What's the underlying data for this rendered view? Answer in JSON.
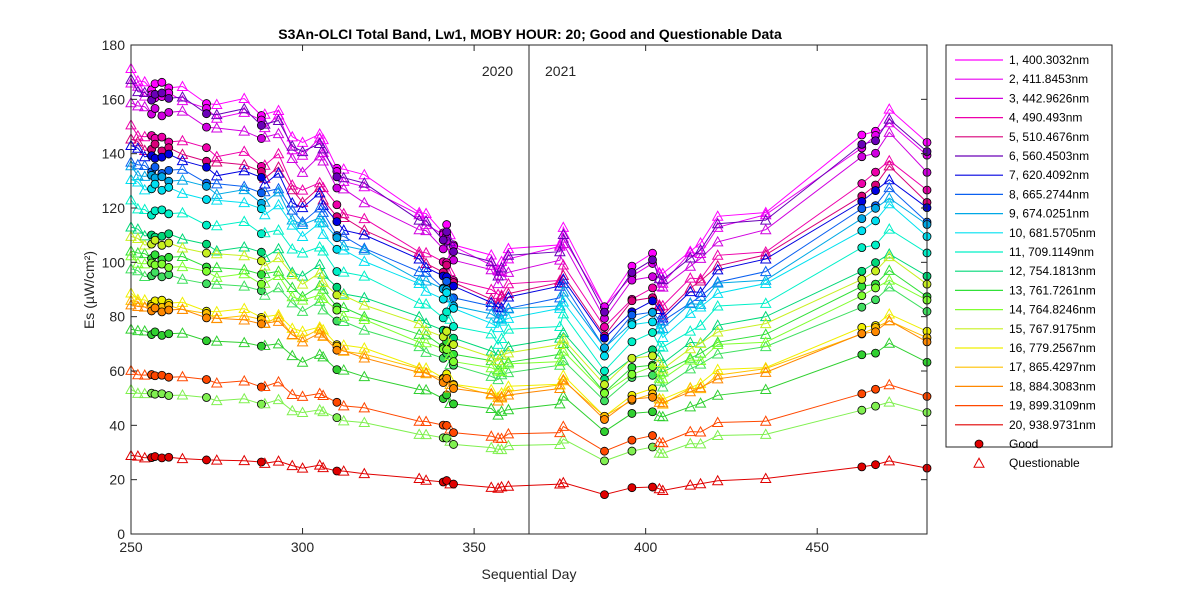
{
  "chart_data": {
    "type": "line",
    "title": "S3An-OLCI Total Band,  Lw1, MOBY HOUR: 20;  Good and Questionable Data",
    "xlabel": "Sequential Day",
    "ylabel": "Es (µW/cm²)",
    "xlim": [
      250,
      482
    ],
    "ylim": [
      0,
      180
    ],
    "xticks": [
      250,
      300,
      350,
      400,
      450
    ],
    "yticks": [
      0,
      20,
      40,
      60,
      80,
      100,
      120,
      140,
      160,
      180
    ],
    "grid": false,
    "legend_position": "outside-right",
    "year_divider": {
      "x": 366,
      "left_label": "2020",
      "right_label": "2021"
    },
    "x": [
      250,
      252,
      254,
      256,
      257,
      259,
      261,
      265,
      272,
      275,
      283,
      288,
      289,
      293,
      297,
      300,
      305,
      306,
      310,
      312,
      318,
      334,
      336,
      341,
      342,
      343,
      344,
      355,
      357,
      358,
      360,
      375,
      376,
      388,
      396,
      402,
      404,
      405,
      413,
      416,
      421,
      435,
      463,
      467,
      471,
      482
    ],
    "good_days": [
      256,
      257,
      259,
      261,
      272,
      288,
      310,
      341,
      342,
      344,
      388,
      396,
      402,
      463,
      467,
      482
    ],
    "series": [
      {
        "name": "1, 400.3032nm",
        "color": "#ff00ff",
        "base": 170
      },
      {
        "name": "2, 411.8453nm",
        "color": "#e800f0",
        "base": 166
      },
      {
        "name": "3, 442.9626nm",
        "color": "#d000e0",
        "base": 160
      },
      {
        "name": "4,  490.493nm",
        "color": "#ee00aa",
        "base": 150
      },
      {
        "name": "5, 510.4676nm",
        "color": "#d8007a",
        "base": 146
      },
      {
        "name": "6, 560.4503nm",
        "color": "#6a00b8",
        "base": 166
      },
      {
        "name": "7, 620.4092nm",
        "color": "#0000e0",
        "base": 143
      },
      {
        "name": "8, 665.2744nm",
        "color": "#0a60f0",
        "base": 138
      },
      {
        "name": "9, 674.0251nm",
        "color": "#00a8e6",
        "base": 135
      },
      {
        "name": "10, 681.5705nm",
        "color": "#00e0f0",
        "base": 131
      },
      {
        "name": "11, 709.1149nm",
        "color": "#00f0c8",
        "base": 122
      },
      {
        "name": "12, 754.1813nm",
        "color": "#00d878",
        "base": 113
      },
      {
        "name": "13, 761.7261nm",
        "color": "#30e038",
        "base": 105
      },
      {
        "name": "14, 764.8246nm",
        "color": "#80ff30",
        "base": 102
      },
      {
        "name": "15, 767.9175nm",
        "color": "#c8f020",
        "base": 110
      },
      {
        "name": "16, 779.2567nm",
        "color": "#f0f000",
        "base": 88
      },
      {
        "name": "17, 865.4297nm",
        "color": "#ffc000",
        "base": 86
      },
      {
        "name": "18, 884.3083nm",
        "color": "#ff8800",
        "base": 85
      },
      {
        "name": "19, 899.3109nm",
        "color": "#ff4800",
        "base": 60
      },
      {
        "name": "20, 938.9731nm",
        "color": "#e00000",
        "base": 29
      }
    ],
    "extra_series": [
      {
        "color": "#30d030",
        "base": 76
      },
      {
        "color": "#80f050",
        "base": 53
      },
      {
        "color": "#40e060",
        "base": 98
      }
    ],
    "shape": [
      1.0,
      0.985,
      0.975,
      0.97,
      0.975,
      0.97,
      0.97,
      0.965,
      0.94,
      0.93,
      0.935,
      0.91,
      0.905,
      0.925,
      0.86,
      0.84,
      0.87,
      0.85,
      0.8,
      0.79,
      0.77,
      0.7,
      0.69,
      0.66,
      0.67,
      0.64,
      0.63,
      0.6,
      0.58,
      0.59,
      0.61,
      0.63,
      0.66,
      0.5,
      0.58,
      0.6,
      0.57,
      0.56,
      0.62,
      0.63,
      0.68,
      0.7,
      0.86,
      0.88,
      0.92,
      0.84
    ],
    "legend_good": "Good",
    "legend_questionable": "Questionable"
  }
}
